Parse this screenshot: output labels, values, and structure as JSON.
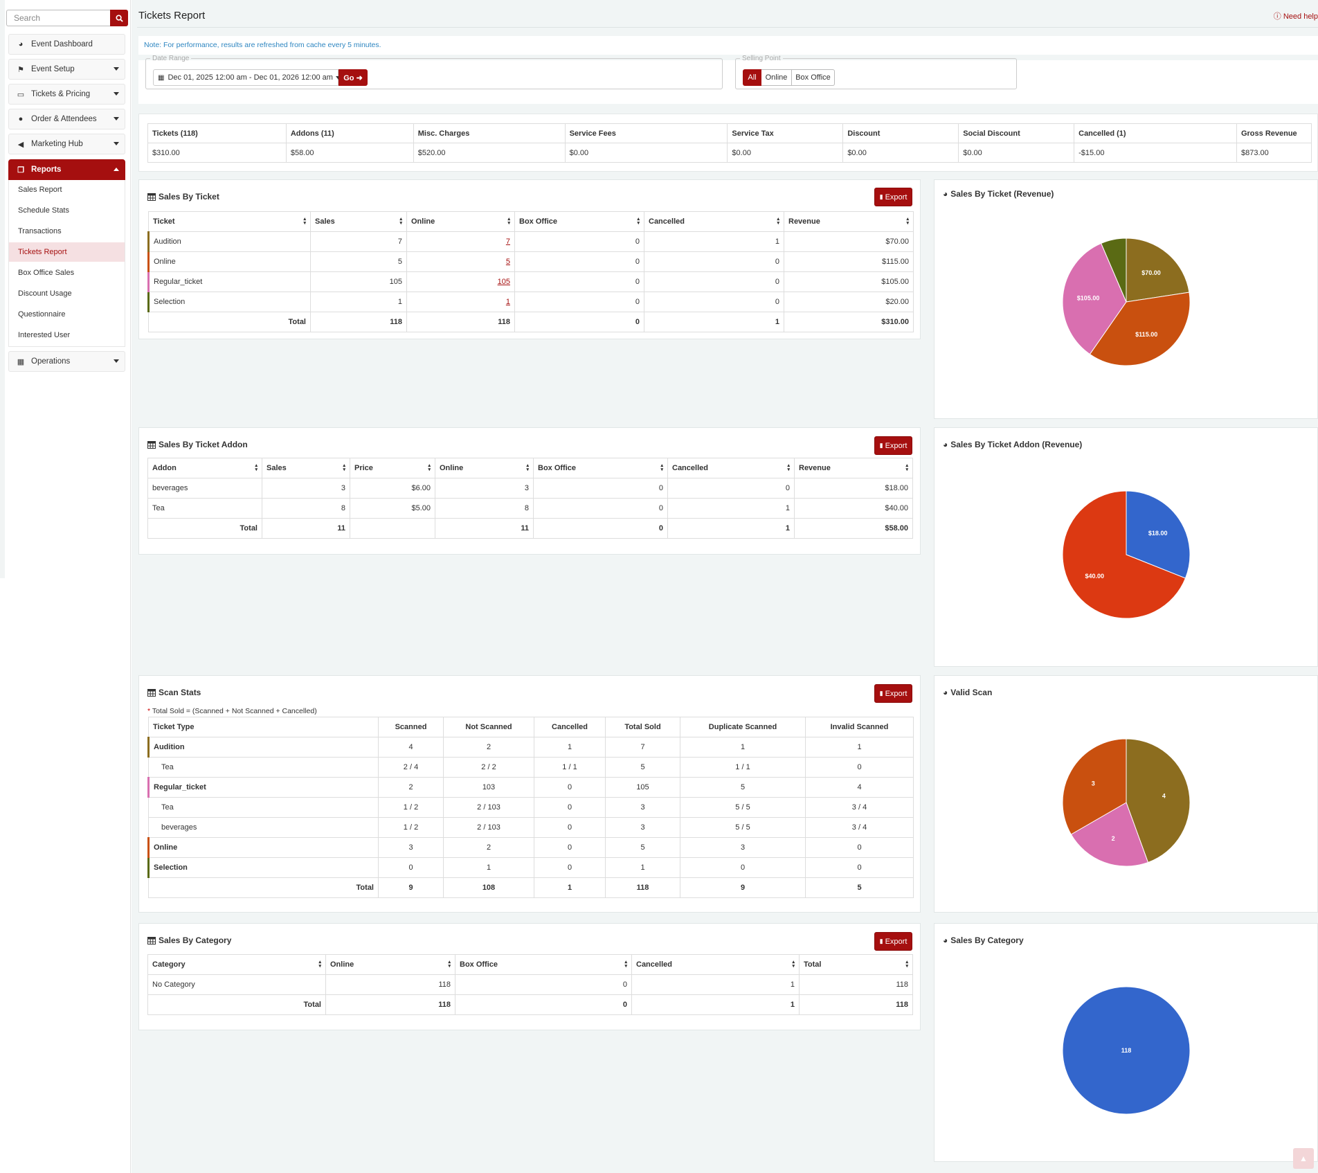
{
  "sidebar": {
    "search_placeholder": "Search",
    "items": {
      "event_dashboard": "Event Dashboard",
      "event_setup": "Event Setup",
      "tickets_pricing": "Tickets & Pricing",
      "order_attendees": "Order & Attendees",
      "marketing_hub": "Marketing Hub",
      "reports": "Reports",
      "operations": "Operations"
    },
    "reports_sub": {
      "sales_report": "Sales Report",
      "schedule_stats": "Schedule Stats",
      "transactions": "Transactions",
      "tickets_report": "Tickets Report",
      "box_office_sales": "Box Office Sales",
      "discount_usage": "Discount Usage",
      "questionnaire": "Questionnaire",
      "interested_user": "Interested User"
    }
  },
  "header": {
    "title": "Tickets Report",
    "help": "Need help"
  },
  "note": "Note: For performance, results are refreshed from cache every 5 minutes.",
  "filters": {
    "date_range_legend": "Date Range",
    "date_range_value": "Dec 01, 2025 12:00 am - Dec 01, 2026 12:00 am",
    "go_label": "Go",
    "selling_point_legend": "Selling Point",
    "selling_options": {
      "all": "All",
      "online": "Online",
      "box_office": "Box Office"
    },
    "selected": "All"
  },
  "summary": {
    "headers": {
      "tickets": "Tickets (118)",
      "addons": "Addons (11)",
      "misc": "Misc. Charges",
      "service_fees": "Service Fees",
      "service_tax": "Service Tax",
      "discount": "Discount",
      "social_discount": "Social Discount",
      "cancelled": "Cancelled (1)",
      "gross": "Gross Revenue"
    },
    "values": {
      "tickets": "$310.00",
      "addons": "$58.00",
      "misc": "$520.00",
      "service_fees": "$0.00",
      "service_tax": "$0.00",
      "discount": "$0.00",
      "social_discount": "$0.00",
      "cancelled": "-$15.00",
      "gross": "$873.00"
    }
  },
  "export_label": "Export",
  "total_label": "Total",
  "sales_by_ticket": {
    "title": "Sales By Ticket",
    "headers": {
      "ticket": "Ticket",
      "sales": "Sales",
      "online": "Online",
      "box_office": "Box Office",
      "cancelled": "Cancelled",
      "revenue": "Revenue"
    },
    "rows": [
      {
        "name": "Audition",
        "sales": "7",
        "online": "7",
        "box_office": "0",
        "cancelled": "1",
        "revenue": "$70.00",
        "color": "#8c6d1f"
      },
      {
        "name": "Online",
        "sales": "5",
        "online": "5",
        "box_office": "0",
        "cancelled": "0",
        "revenue": "$115.00",
        "color": "#c9500f"
      },
      {
        "name": "Regular_ticket",
        "sales": "105",
        "online": "105",
        "box_office": "0",
        "cancelled": "0",
        "revenue": "$105.00",
        "color": "#d96fb0"
      },
      {
        "name": "Selection",
        "sales": "1",
        "online": "1",
        "box_office": "0",
        "cancelled": "0",
        "revenue": "$20.00",
        "color": "#5a6a14"
      }
    ],
    "total": {
      "sales": "118",
      "online": "118",
      "box_office": "0",
      "cancelled": "1",
      "revenue": "$310.00"
    }
  },
  "sales_by_addon": {
    "title": "Sales By Ticket Addon",
    "headers": {
      "addon": "Addon",
      "sales": "Sales",
      "price": "Price",
      "online": "Online",
      "box_office": "Box Office",
      "cancelled": "Cancelled",
      "revenue": "Revenue"
    },
    "rows": [
      {
        "name": "beverages",
        "sales": "3",
        "price": "$6.00",
        "online": "3",
        "box_office": "0",
        "cancelled": "0",
        "revenue": "$18.00"
      },
      {
        "name": "Tea",
        "sales": "8",
        "price": "$5.00",
        "online": "8",
        "box_office": "0",
        "cancelled": "1",
        "revenue": "$40.00"
      }
    ],
    "total": {
      "sales": "11",
      "price": "",
      "online": "11",
      "box_office": "0",
      "cancelled": "1",
      "revenue": "$58.00"
    }
  },
  "scan_stats": {
    "title": "Scan Stats",
    "formula": "Total Sold = (Scanned + Not Scanned + Cancelled)",
    "headers": {
      "type": "Ticket Type",
      "scanned": "Scanned",
      "not_scanned": "Not Scanned",
      "cancelled": "Cancelled",
      "total_sold": "Total Sold",
      "duplicate": "Duplicate Scanned",
      "invalid": "Invalid Scanned"
    },
    "rows": [
      {
        "name": "Audition",
        "level": "parent",
        "color": "#8c6d1f",
        "scanned": "4",
        "not_scanned": "2",
        "cancelled": "1",
        "total_sold": "7",
        "duplicate": "1",
        "invalid": "1"
      },
      {
        "name": "Tea",
        "level": "child",
        "scanned": "2 / 4",
        "not_scanned": "2 / 2",
        "cancelled": "1 / 1",
        "total_sold": "5",
        "duplicate": "1 / 1",
        "invalid": "0"
      },
      {
        "name": "Regular_ticket",
        "level": "parent",
        "color": "#d96fb0",
        "scanned": "2",
        "not_scanned": "103",
        "cancelled": "0",
        "total_sold": "105",
        "duplicate": "5",
        "invalid": "4"
      },
      {
        "name": "Tea",
        "level": "child",
        "scanned": "1 / 2",
        "not_scanned": "2 / 103",
        "cancelled": "0",
        "total_sold": "3",
        "duplicate": "5 / 5",
        "invalid": "3 / 4"
      },
      {
        "name": "beverages",
        "level": "child",
        "scanned": "1 / 2",
        "not_scanned": "2 / 103",
        "cancelled": "0",
        "total_sold": "3",
        "duplicate": "5 / 5",
        "invalid": "3 / 4"
      },
      {
        "name": "Online",
        "level": "parent",
        "color": "#c9500f",
        "scanned": "3",
        "not_scanned": "2",
        "cancelled": "0",
        "total_sold": "5",
        "duplicate": "3",
        "invalid": "0"
      },
      {
        "name": "Selection",
        "level": "parent",
        "color": "#5a6a14",
        "scanned": "0",
        "not_scanned": "1",
        "cancelled": "0",
        "total_sold": "1",
        "duplicate": "0",
        "invalid": "0"
      }
    ],
    "total": {
      "scanned": "9",
      "not_scanned": "108",
      "cancelled": "1",
      "total_sold": "118",
      "duplicate": "9",
      "invalid": "5"
    }
  },
  "sales_by_category": {
    "title": "Sales By Category",
    "headers": {
      "category": "Category",
      "online": "Online",
      "box_office": "Box Office",
      "cancelled": "Cancelled",
      "total": "Total"
    },
    "rows": [
      {
        "name": "No Category",
        "online": "118",
        "box_office": "0",
        "cancelled": "1",
        "total": "118"
      }
    ],
    "total": {
      "online": "118",
      "box_office": "0",
      "cancelled": "1",
      "total": "118"
    }
  },
  "charts": {
    "ticket_revenue_title": "Sales By Ticket (Revenue)",
    "addon_revenue_title": "Sales By Ticket Addon (Revenue)",
    "valid_scan_title": "Valid Scan",
    "category_title": "Sales By Category"
  },
  "chart_data": [
    {
      "type": "pie",
      "title": "Sales By Ticket (Revenue)",
      "slices": [
        {
          "label": "Audition",
          "value": 70,
          "text": "$70.00",
          "color": "#8c6d1f"
        },
        {
          "label": "Online",
          "value": 115,
          "text": "$115.00",
          "color": "#c9500f"
        },
        {
          "label": "Regular_ticket",
          "value": 105,
          "text": "$105.00",
          "color": "#d96fb0"
        },
        {
          "label": "Selection",
          "value": 20,
          "text": "",
          "color": "#5a6a14"
        }
      ]
    },
    {
      "type": "pie",
      "title": "Sales By Ticket Addon (Revenue)",
      "slices": [
        {
          "label": "beverages",
          "value": 18,
          "text": "$18.00",
          "color": "#3366cc"
        },
        {
          "label": "Tea",
          "value": 40,
          "text": "$40.00",
          "color": "#dc3912"
        }
      ]
    },
    {
      "type": "pie",
      "title": "Valid Scan",
      "slices": [
        {
          "label": "Audition",
          "value": 4,
          "text": "4",
          "color": "#8c6d1f"
        },
        {
          "label": "Regular_ticket",
          "value": 2,
          "text": "2",
          "color": "#d96fb0"
        },
        {
          "label": "Online",
          "value": 3,
          "text": "3",
          "color": "#c9500f"
        }
      ]
    },
    {
      "type": "pie",
      "title": "Sales By Category",
      "slices": [
        {
          "label": "No Category",
          "value": 118,
          "text": "118",
          "color": "#3366cc"
        }
      ]
    }
  ],
  "icons": {
    "search": "search-icon",
    "dashboard": "dashboard-icon",
    "flag": "flag-icon",
    "ticket": "ticket-icon",
    "user": "user-icon",
    "bullhorn": "bullhorn-icon",
    "reports": "reports-icon",
    "operations": "operations-icon",
    "table": "table-icon",
    "pie": "pie-chart-icon",
    "file": "file-icon",
    "calendar": "calendar-icon",
    "info": "info-icon",
    "arrow_right": "arrow-circle-right-icon",
    "chevron_up": "chevron-up-icon"
  },
  "colors": {
    "brand": "#a50f0f",
    "note": "#2e86c1",
    "pie_blue": "#3366cc",
    "pie_red": "#dc3912"
  }
}
